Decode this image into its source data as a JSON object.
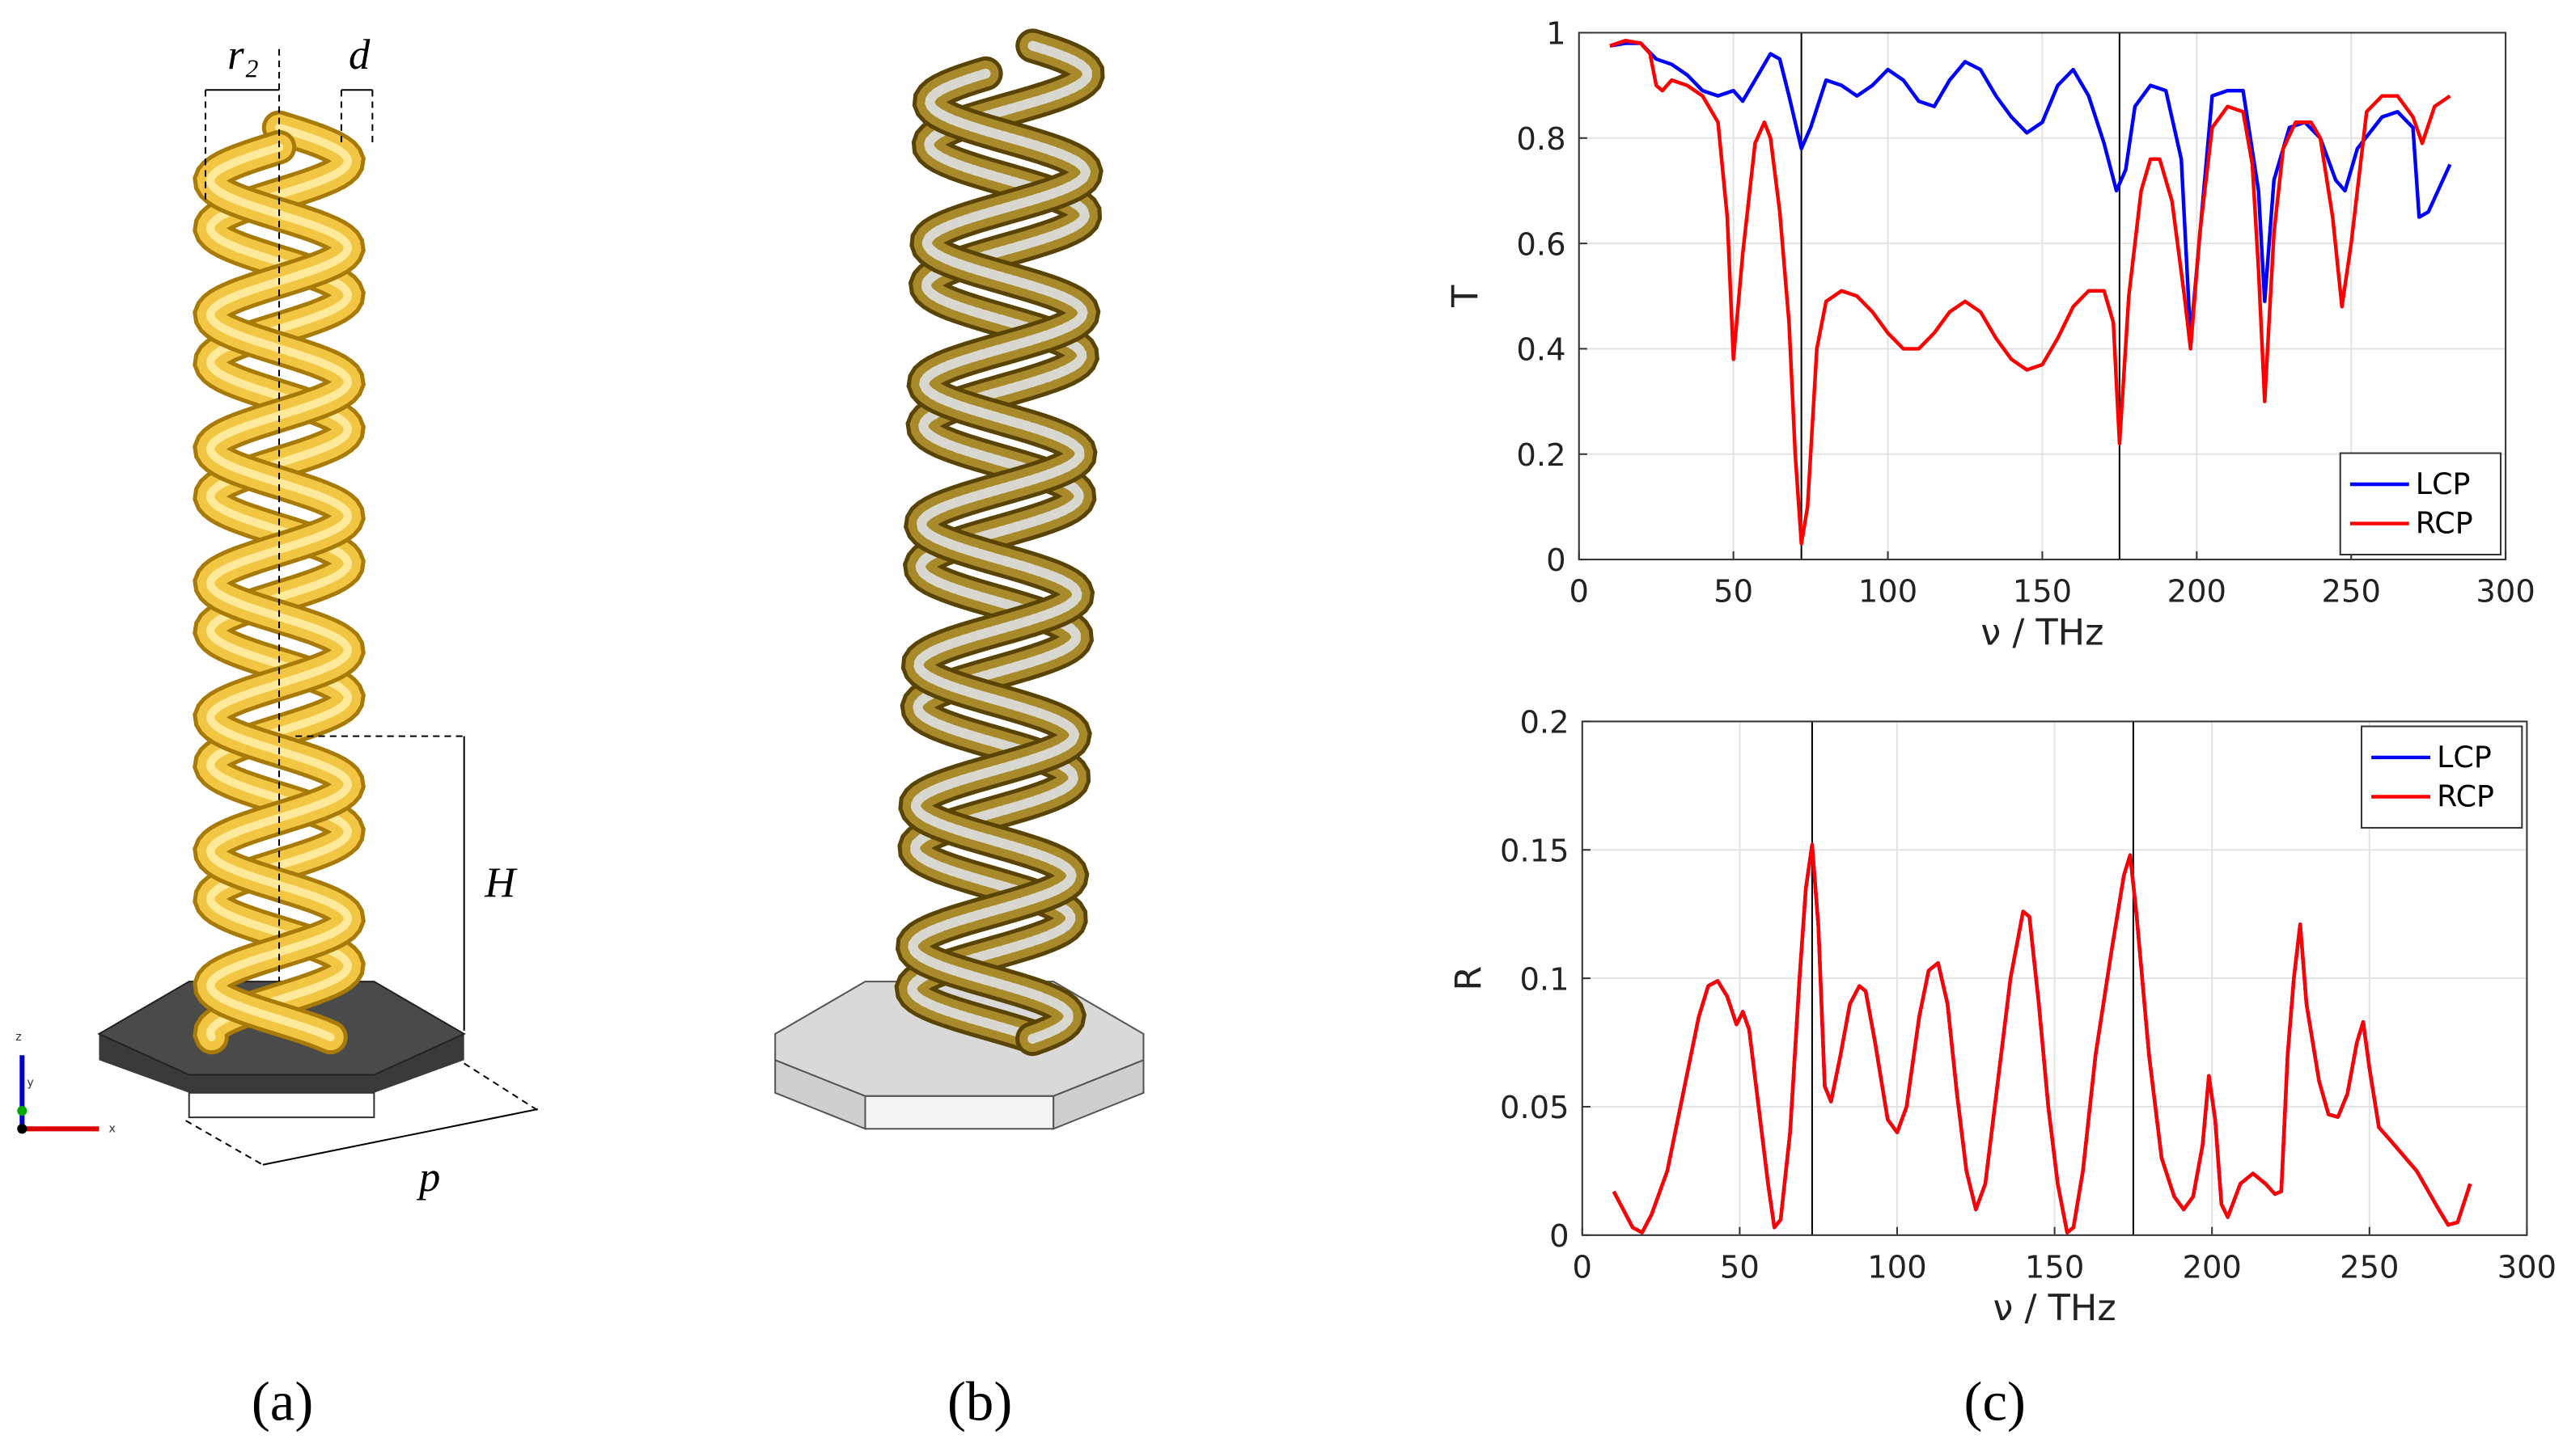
{
  "panels": [
    "(a)",
    "(b)",
    "(c)"
  ],
  "annotations": {
    "r2": "r₂",
    "d": "d",
    "H": "H",
    "p": "p",
    "axis_z": "z",
    "axis_y": "y",
    "axis_x": "x"
  },
  "chart_data": [
    {
      "type": "line",
      "ylabel": "T",
      "xlabel": "ν / THz",
      "xlim": [
        0,
        300
      ],
      "xticks": [
        0,
        50,
        100,
        150,
        200,
        250,
        300
      ],
      "ylim": [
        0,
        1
      ],
      "yticks": [
        0,
        0.2,
        0.4,
        0.6,
        0.8,
        1
      ],
      "grid": true,
      "legend": "lower right",
      "vlines": [
        72,
        175
      ],
      "vline_color": "#000000",
      "series": [
        {
          "name": "LCP",
          "color": "#0000ff",
          "x": [
            10,
            15,
            20,
            25,
            30,
            35,
            40,
            45,
            50,
            53,
            57,
            62,
            65,
            68,
            72,
            75,
            80,
            85,
            90,
            95,
            100,
            105,
            110,
            115,
            120,
            125,
            130,
            135,
            140,
            145,
            150,
            155,
            160,
            165,
            170,
            174,
            177,
            180,
            185,
            190,
            195,
            198,
            200,
            205,
            210,
            215,
            220,
            222,
            225,
            230,
            235,
            240,
            245,
            248,
            252,
            260,
            265,
            270,
            272,
            275,
            282
          ],
          "values": [
            0.975,
            0.98,
            0.98,
            0.95,
            0.94,
            0.92,
            0.89,
            0.88,
            0.89,
            0.87,
            0.91,
            0.96,
            0.95,
            0.88,
            0.78,
            0.82,
            0.91,
            0.9,
            0.88,
            0.9,
            0.93,
            0.91,
            0.87,
            0.86,
            0.91,
            0.945,
            0.93,
            0.88,
            0.84,
            0.81,
            0.83,
            0.9,
            0.93,
            0.88,
            0.79,
            0.7,
            0.74,
            0.86,
            0.9,
            0.89,
            0.76,
            0.42,
            0.55,
            0.88,
            0.89,
            0.89,
            0.7,
            0.49,
            0.72,
            0.82,
            0.83,
            0.8,
            0.72,
            0.7,
            0.78,
            0.84,
            0.85,
            0.82,
            0.65,
            0.66,
            0.75
          ]
        },
        {
          "name": "RCP",
          "color": "#ff0000",
          "x": [
            10,
            15,
            20,
            23,
            25,
            27,
            30,
            35,
            40,
            45,
            48,
            50,
            53,
            57,
            60,
            62,
            65,
            68,
            70,
            72,
            74,
            77,
            80,
            85,
            90,
            95,
            100,
            105,
            110,
            115,
            120,
            125,
            130,
            135,
            140,
            145,
            150,
            155,
            160,
            165,
            170,
            173,
            175,
            178,
            182,
            185,
            188,
            192,
            196,
            198,
            201,
            205,
            210,
            215,
            218,
            220,
            222,
            225,
            228,
            232,
            237,
            240,
            244,
            247,
            250,
            255,
            260,
            265,
            270,
            273,
            277,
            282
          ],
          "values": [
            0.975,
            0.985,
            0.98,
            0.96,
            0.9,
            0.89,
            0.91,
            0.9,
            0.88,
            0.83,
            0.65,
            0.38,
            0.58,
            0.79,
            0.83,
            0.8,
            0.66,
            0.45,
            0.2,
            0.03,
            0.1,
            0.4,
            0.49,
            0.51,
            0.5,
            0.47,
            0.43,
            0.4,
            0.4,
            0.43,
            0.47,
            0.49,
            0.47,
            0.42,
            0.38,
            0.36,
            0.37,
            0.42,
            0.48,
            0.51,
            0.51,
            0.45,
            0.22,
            0.5,
            0.7,
            0.76,
            0.76,
            0.68,
            0.5,
            0.4,
            0.62,
            0.82,
            0.86,
            0.85,
            0.75,
            0.55,
            0.3,
            0.62,
            0.78,
            0.83,
            0.83,
            0.8,
            0.65,
            0.48,
            0.6,
            0.85,
            0.88,
            0.88,
            0.84,
            0.79,
            0.86,
            0.88
          ]
        }
      ]
    },
    {
      "type": "line",
      "ylabel": "R",
      "xlabel": "ν / THz",
      "xlim": [
        0,
        300
      ],
      "xticks": [
        0,
        50,
        100,
        150,
        200,
        250,
        300
      ],
      "ylim": [
        0,
        0.2
      ],
      "yticks": [
        0,
        0.05,
        0.1,
        0.15,
        0.2
      ],
      "grid": true,
      "legend": "upper right",
      "vlines": [
        73,
        175
      ],
      "vline_color": "#000000",
      "series": [
        {
          "name": "LCP",
          "color": "#0000ff",
          "x": [
            10,
            13,
            16,
            19,
            22,
            27,
            32,
            37,
            40,
            43,
            46,
            49,
            51,
            53,
            56,
            59,
            61,
            63,
            66,
            69,
            71,
            73,
            75,
            77,
            79,
            82,
            85,
            88,
            90,
            93,
            97,
            100,
            103,
            107,
            110,
            113,
            116,
            119,
            122,
            125,
            128,
            132,
            136,
            140,
            142,
            145,
            148,
            151,
            154,
            156,
            159,
            163,
            168,
            172,
            174,
            176,
            180,
            184,
            188,
            191,
            194,
            197,
            199,
            201,
            203,
            205,
            209,
            213,
            217,
            220,
            222,
            224,
            226,
            228,
            230,
            234,
            237,
            240,
            243,
            246,
            248,
            250,
            253,
            258,
            265,
            272,
            275,
            278,
            282
          ],
          "values": [
            0.017,
            0.01,
            0.003,
            0.001,
            0.008,
            0.025,
            0.055,
            0.085,
            0.097,
            0.099,
            0.093,
            0.082,
            0.087,
            0.08,
            0.05,
            0.02,
            0.003,
            0.006,
            0.04,
            0.1,
            0.135,
            0.152,
            0.12,
            0.058,
            0.052,
            0.07,
            0.09,
            0.097,
            0.095,
            0.075,
            0.045,
            0.04,
            0.05,
            0.085,
            0.103,
            0.106,
            0.09,
            0.055,
            0.025,
            0.01,
            0.02,
            0.06,
            0.1,
            0.126,
            0.124,
            0.09,
            0.05,
            0.02,
            0.001,
            0.003,
            0.025,
            0.07,
            0.11,
            0.14,
            0.148,
            0.125,
            0.07,
            0.03,
            0.015,
            0.01,
            0.015,
            0.035,
            0.062,
            0.045,
            0.012,
            0.007,
            0.02,
            0.024,
            0.02,
            0.016,
            0.017,
            0.07,
            0.1,
            0.121,
            0.09,
            0.06,
            0.047,
            0.046,
            0.055,
            0.075,
            0.083,
            0.065,
            0.042,
            0.035,
            0.025,
            0.01,
            0.004,
            0.005,
            0.02
          ]
        },
        {
          "name": "RCP",
          "color": "#ff0000",
          "x": [
            10,
            13,
            16,
            19,
            22,
            27,
            32,
            37,
            40,
            43,
            46,
            49,
            51,
            53,
            56,
            59,
            61,
            63,
            66,
            69,
            71,
            73,
            75,
            77,
            79,
            82,
            85,
            88,
            90,
            93,
            97,
            100,
            103,
            107,
            110,
            113,
            116,
            119,
            122,
            125,
            128,
            132,
            136,
            140,
            142,
            145,
            148,
            151,
            154,
            156,
            159,
            163,
            168,
            172,
            174,
            176,
            180,
            184,
            188,
            191,
            194,
            197,
            199,
            201,
            203,
            205,
            209,
            213,
            217,
            220,
            222,
            224,
            226,
            228,
            230,
            234,
            237,
            240,
            243,
            246,
            248,
            250,
            253,
            258,
            265,
            272,
            275,
            278,
            282
          ],
          "values": [
            0.017,
            0.01,
            0.003,
            0.001,
            0.008,
            0.025,
            0.055,
            0.085,
            0.097,
            0.099,
            0.093,
            0.082,
            0.087,
            0.08,
            0.05,
            0.02,
            0.003,
            0.006,
            0.04,
            0.1,
            0.135,
            0.152,
            0.12,
            0.058,
            0.052,
            0.07,
            0.09,
            0.097,
            0.095,
            0.075,
            0.045,
            0.04,
            0.05,
            0.085,
            0.103,
            0.106,
            0.09,
            0.055,
            0.025,
            0.01,
            0.02,
            0.06,
            0.1,
            0.126,
            0.124,
            0.09,
            0.05,
            0.02,
            0.001,
            0.003,
            0.025,
            0.07,
            0.11,
            0.14,
            0.148,
            0.125,
            0.07,
            0.03,
            0.015,
            0.01,
            0.015,
            0.035,
            0.062,
            0.045,
            0.012,
            0.007,
            0.02,
            0.024,
            0.02,
            0.016,
            0.017,
            0.07,
            0.1,
            0.121,
            0.09,
            0.06,
            0.047,
            0.046,
            0.055,
            0.075,
            0.083,
            0.065,
            0.042,
            0.035,
            0.025,
            0.01,
            0.004,
            0.005,
            0.02
          ]
        }
      ]
    }
  ]
}
